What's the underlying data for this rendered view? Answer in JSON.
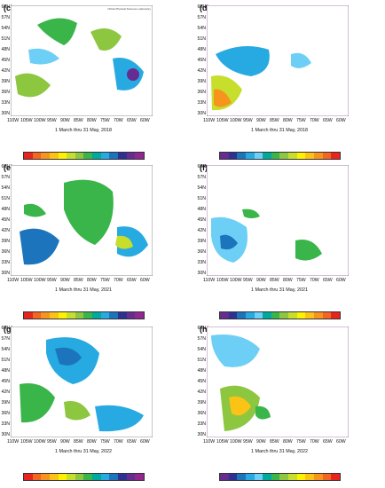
{
  "panels": [
    {
      "label": "(c)",
      "caption": "1 March thru 31 May, 2018"
    },
    {
      "label": "(d)",
      "caption": "1 March thru 31 May, 2018"
    },
    {
      "label": "(e)",
      "caption": "1 March thru 31 May, 2021"
    },
    {
      "label": "(f)",
      "caption": "1 March thru 31 May, 2021"
    },
    {
      "label": "(g)",
      "caption": "1 March thru 31 May, 2022"
    },
    {
      "label": "(h)",
      "caption": "1 March thru 31 May, 2022"
    }
  ],
  "lat_labels": [
    "60N",
    "57N",
    "54N",
    "51N",
    "48N",
    "45N",
    "42N",
    "39N",
    "36N",
    "33N",
    "30N"
  ],
  "lon_labels": [
    "110W",
    "105W",
    "100W",
    "95W",
    "90W",
    "85W",
    "80W",
    "75W",
    "70W",
    "65W",
    "60W"
  ],
  "credit": "NOAA Physical Sciences Laboratory",
  "colorbar_precip": [
    "#e8241c",
    "#f26522",
    "#f7941d",
    "#fcc317",
    "#fff200",
    "#c7de2c",
    "#8dc63f",
    "#39b54a",
    "#00a99d",
    "#27aae1",
    "#1c75bc",
    "#2e3192",
    "#662d91",
    "#92278f"
  ],
  "colorbar_temp": [
    "#662d91",
    "#2e3192",
    "#1c75bc",
    "#27aae1",
    "#6dcff6",
    "#00a99d",
    "#39b54a",
    "#8dc63f",
    "#c7de2c",
    "#fff200",
    "#fcc317",
    "#f7941d",
    "#f26522",
    "#e8241c"
  ]
}
